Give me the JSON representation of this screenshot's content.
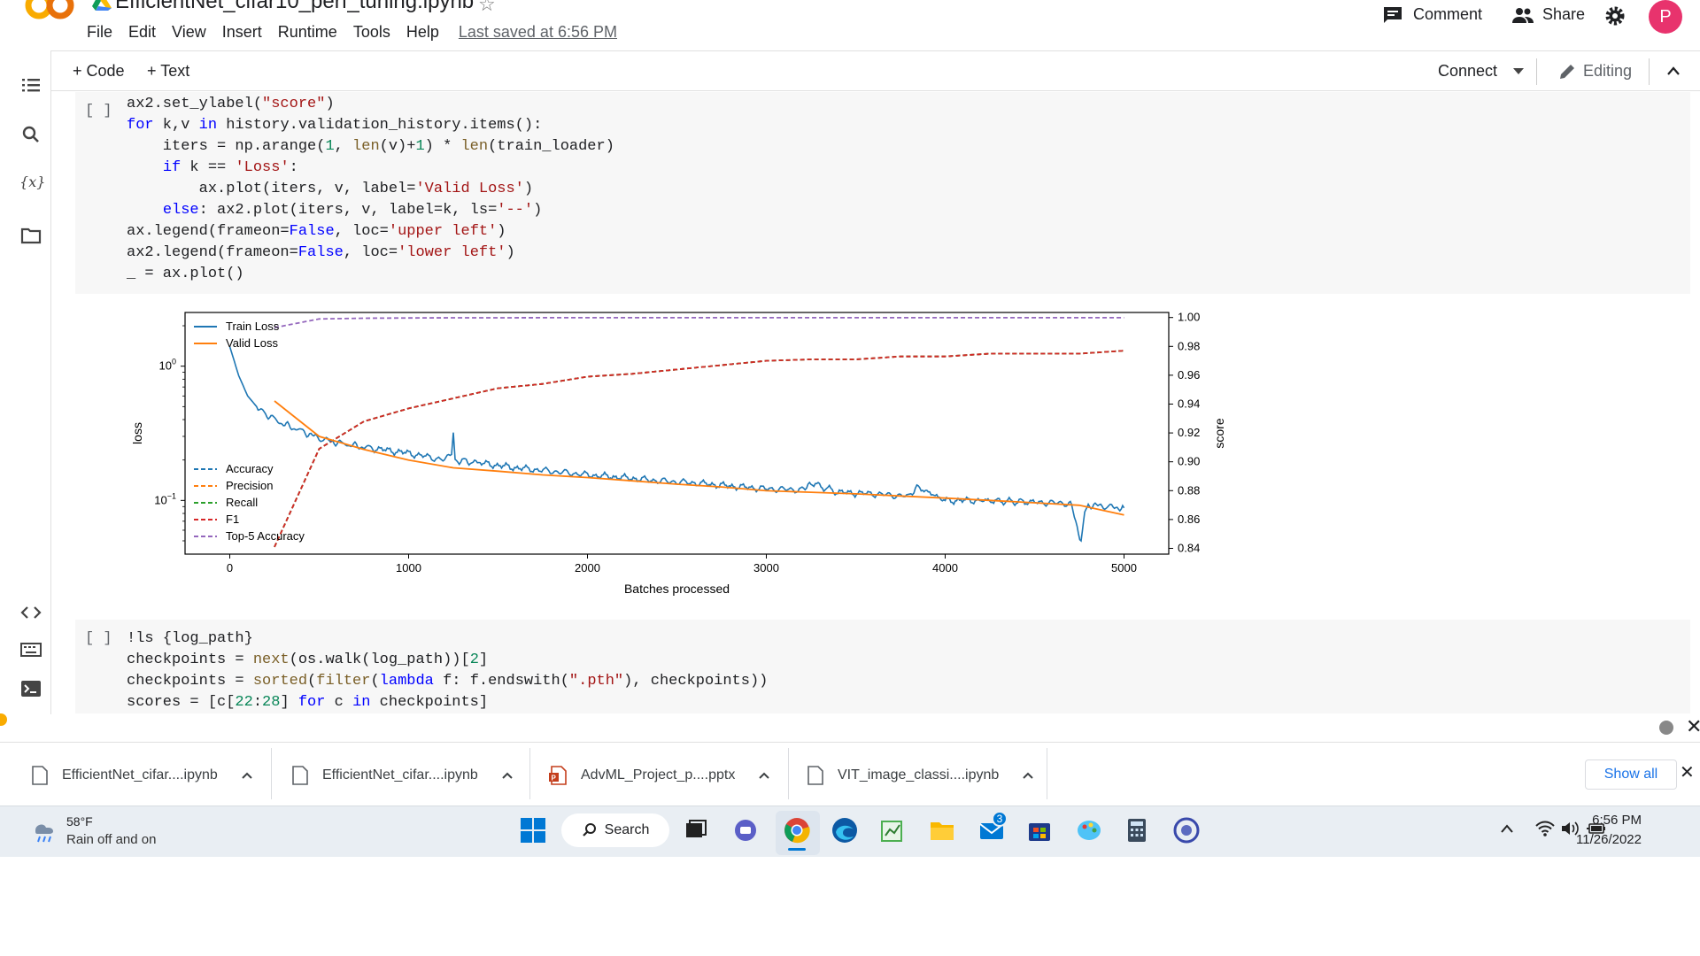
{
  "header": {
    "title": "EfficientNet_cifar10_perf_tuning.ipynb",
    "menu": [
      "File",
      "Edit",
      "View",
      "Insert",
      "Runtime",
      "Tools",
      "Help"
    ],
    "last_saved": "Last saved at 6:56 PM",
    "comment_label": "Comment",
    "share_label": "Share",
    "avatar_letter": "P"
  },
  "toolbar": {
    "add_code": "+ Code",
    "add_text": "+ Text",
    "connect": "Connect",
    "editing": "Editing"
  },
  "cell1": {
    "bracket": "[ ]"
  },
  "cell2": {
    "bracket": "[ ]"
  },
  "chart_data": {
    "type": "line",
    "xlabel": "Batches processed",
    "ylabel_left": "loss",
    "ylabel_right": "score",
    "x_ticks": [
      "0",
      "1000",
      "2000",
      "3000",
      "4000",
      "5000"
    ],
    "x_tick_values": [
      0,
      1000,
      2000,
      3000,
      4000,
      5000
    ],
    "y_left_scale": "log",
    "y_left_ticks": [
      {
        "value": 1,
        "base": "10",
        "exp": "0"
      },
      {
        "value": 0.1,
        "base": "10",
        "exp": "−1"
      }
    ],
    "y_right_ticks": [
      "1.00",
      "0.98",
      "0.96",
      "0.94",
      "0.92",
      "0.90",
      "0.88",
      "0.86",
      "0.84"
    ],
    "y_right_values": [
      1.0,
      0.98,
      0.96,
      0.94,
      0.92,
      0.9,
      0.88,
      0.86,
      0.84
    ],
    "xlim": [
      -250,
      5250
    ],
    "ylim_left_log10": [
      -1.4,
      0.4
    ],
    "ylim_right": [
      0.836,
      1.0035
    ],
    "legend_top_left": [
      "Train Loss",
      "Valid Loss"
    ],
    "legend_lower_left": [
      "Accuracy",
      "Precision",
      "Recall",
      "F1",
      "Top-5 Accuracy"
    ],
    "colors": {
      "blue": "#1f77b4",
      "orange": "#ff7f0e",
      "green": "#2ca02c",
      "red": "#d62728",
      "purple": "#9467bd"
    },
    "series": [
      {
        "name": "Train Loss",
        "axis": "left",
        "style": "solid",
        "color": "#1f77b4",
        "x": [
          0,
          50,
          100,
          150,
          200,
          300,
          400,
          500,
          600,
          700,
          800,
          1000,
          1200,
          1240,
          1250,
          1260,
          1400,
          1600,
          1800,
          2000,
          2200,
          2400,
          2600,
          2800,
          3000,
          3200,
          3250,
          3400,
          3600,
          3800,
          3850,
          4000,
          4200,
          4500,
          4700,
          4760,
          4780,
          4800,
          4900,
          5000
        ],
        "y": [
          1.4,
          0.85,
          0.6,
          0.5,
          0.44,
          0.37,
          0.33,
          0.29,
          0.27,
          0.255,
          0.245,
          0.225,
          0.2,
          0.22,
          0.32,
          0.2,
          0.19,
          0.175,
          0.165,
          0.155,
          0.148,
          0.14,
          0.135,
          0.128,
          0.122,
          0.12,
          0.135,
          0.115,
          0.112,
          0.107,
          0.125,
          0.1,
          0.1,
          0.097,
          0.095,
          0.05,
          0.082,
          0.093,
          0.09,
          0.088
        ]
      },
      {
        "name": "Valid Loss",
        "axis": "left",
        "style": "solid",
        "color": "#ff7f0e",
        "x": [
          250,
          500,
          750,
          1000,
          1250,
          1500,
          1750,
          2000,
          2250,
          2500,
          2750,
          3000,
          3250,
          3500,
          3750,
          4000,
          4250,
          4500,
          4750,
          5000
        ],
        "y": [
          0.55,
          0.3,
          0.24,
          0.2,
          0.175,
          0.165,
          0.155,
          0.148,
          0.14,
          0.132,
          0.126,
          0.118,
          0.115,
          0.112,
          0.108,
          0.104,
          0.1,
          0.096,
          0.092,
          0.078
        ]
      },
      {
        "name": "Accuracy",
        "axis": "right",
        "style": "dashed",
        "color": "#1f77b4",
        "x": [
          250,
          500,
          750,
          1000,
          1250,
          1500,
          1750,
          2000,
          2250,
          2500,
          2750,
          3000,
          3250,
          3500,
          3750,
          4000,
          4250,
          4500,
          4750,
          5000
        ],
        "y": [
          0.841,
          0.909,
          0.928,
          0.937,
          0.944,
          0.951,
          0.954,
          0.959,
          0.961,
          0.964,
          0.967,
          0.97,
          0.971,
          0.971,
          0.973,
          0.973,
          0.975,
          0.975,
          0.975,
          0.977
        ]
      },
      {
        "name": "Precision",
        "axis": "right",
        "style": "dashed",
        "color": "#ff7f0e",
        "x": [
          250,
          500,
          750,
          1000,
          1250,
          1500,
          1750,
          2000,
          2250,
          2500,
          2750,
          3000,
          3250,
          3500,
          3750,
          4000,
          4250,
          4500,
          4750,
          5000
        ],
        "y": [
          0.841,
          0.909,
          0.928,
          0.937,
          0.944,
          0.951,
          0.954,
          0.959,
          0.961,
          0.964,
          0.967,
          0.97,
          0.971,
          0.971,
          0.973,
          0.973,
          0.975,
          0.975,
          0.975,
          0.977
        ]
      },
      {
        "name": "Recall",
        "axis": "right",
        "style": "dashed",
        "color": "#2ca02c",
        "x": [
          250,
          500,
          750,
          1000,
          1250,
          1500,
          1750,
          2000,
          2250,
          2500,
          2750,
          3000,
          3250,
          3500,
          3750,
          4000,
          4250,
          4500,
          4750,
          5000
        ],
        "y": [
          0.841,
          0.909,
          0.928,
          0.937,
          0.944,
          0.951,
          0.954,
          0.959,
          0.961,
          0.964,
          0.967,
          0.97,
          0.971,
          0.971,
          0.973,
          0.973,
          0.975,
          0.975,
          0.975,
          0.977
        ]
      },
      {
        "name": "F1",
        "axis": "right",
        "style": "dashed",
        "color": "#d62728",
        "x": [
          250,
          500,
          750,
          1000,
          1250,
          1500,
          1750,
          2000,
          2250,
          2500,
          2750,
          3000,
          3250,
          3500,
          3750,
          4000,
          4250,
          4500,
          4750,
          5000
        ],
        "y": [
          0.841,
          0.909,
          0.928,
          0.937,
          0.944,
          0.951,
          0.954,
          0.959,
          0.961,
          0.964,
          0.967,
          0.97,
          0.971,
          0.971,
          0.973,
          0.973,
          0.975,
          0.975,
          0.975,
          0.977
        ]
      },
      {
        "name": "Top-5 Accuracy",
        "axis": "right",
        "style": "dashed",
        "color": "#9467bd",
        "x": [
          250,
          500,
          750,
          1000,
          1250,
          1500,
          1750,
          2000,
          2250,
          2500,
          2750,
          3000,
          3250,
          3500,
          3750,
          4000,
          4250,
          4500,
          4750,
          5000
        ],
        "y": [
          0.993,
          0.999,
          0.9995,
          0.9997,
          0.9998,
          0.9998,
          0.9999,
          0.9999,
          0.9999,
          0.9999,
          0.9999,
          0.9999,
          0.9999,
          0.9999,
          0.9999,
          0.9999,
          0.9999,
          0.9999,
          0.9999,
          0.9999
        ]
      }
    ]
  },
  "downloads": {
    "items": [
      {
        "name": "EfficientNet_cifar....ipynb",
        "icon": "file-icon"
      },
      {
        "name": "EfficientNet_cifar....ipynb",
        "icon": "file-icon"
      },
      {
        "name": "AdvML_Project_p....pptx",
        "icon": "powerpoint-icon"
      },
      {
        "name": "VIT_image_classi....ipynb",
        "icon": "file-icon"
      }
    ],
    "show_all": "Show all"
  },
  "taskbar": {
    "weather_temp": "58°F",
    "weather_desc": "Rain off and on",
    "search_label": "Search",
    "mail_badge": "3",
    "time": "6:56 PM",
    "date": "11/26/2022"
  }
}
